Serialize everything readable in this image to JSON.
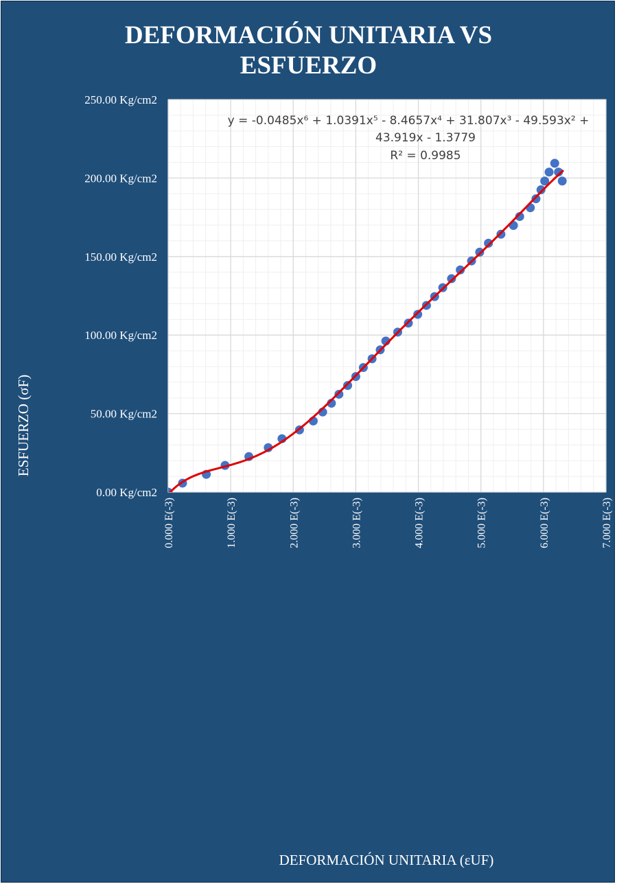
{
  "colors": {
    "frame": "#1f4e79",
    "plot_bg": "#ffffff",
    "marker": "#4472c4",
    "trendline": "#e00000",
    "grid_major": "#d9d9d9",
    "grid_minor": "#efefef"
  },
  "chart_data": {
    "type": "scatter",
    "title_lines": [
      "DEFORMACIÓN UNITARIA VS",
      "ESFUERZO"
    ],
    "xlabel": "DEFORMACIÓN UNITARIA (εUF)",
    "ylabel": "ESFUERZO (σF)",
    "xlim": [
      0,
      7
    ],
    "ylim": [
      0,
      250
    ],
    "x_ticks": [
      0,
      1,
      2,
      3,
      4,
      5,
      6,
      7
    ],
    "x_tick_labels": [
      "0.000 E(-3)",
      "1.000 E(-3)",
      "2.000 E(-3)",
      "3.000 E(-3)",
      "4.000 E(-3)",
      "5.000 E(-3)",
      "6.000 E(-3)",
      "7.000 E(-3)"
    ],
    "y_ticks": [
      0,
      50,
      100,
      150,
      200,
      250
    ],
    "y_tick_labels": [
      "0.00 Kg/cm2",
      "50.00 Kg/cm2",
      "100.00 Kg/cm2",
      "150.00 Kg/cm2",
      "200.00 Kg/cm2",
      "250.00 Kg/cm2"
    ],
    "grid": true,
    "minor_grid": true,
    "points": [
      [
        0.0,
        0.0
      ],
      [
        0.23,
        5.7
      ],
      [
        0.61,
        11.3
      ],
      [
        0.91,
        17.0
      ],
      [
        1.29,
        22.6
      ],
      [
        1.6,
        28.3
      ],
      [
        1.82,
        34.0
      ],
      [
        2.1,
        39.6
      ],
      [
        2.32,
        45.3
      ],
      [
        2.47,
        51.0
      ],
      [
        2.61,
        56.6
      ],
      [
        2.73,
        62.3
      ],
      [
        2.87,
        67.9
      ],
      [
        3.0,
        73.6
      ],
      [
        3.12,
        79.3
      ],
      [
        3.26,
        84.9
      ],
      [
        3.39,
        90.6
      ],
      [
        3.48,
        96.2
      ],
      [
        3.67,
        101.9
      ],
      [
        3.84,
        107.6
      ],
      [
        3.99,
        113.2
      ],
      [
        4.13,
        118.9
      ],
      [
        4.26,
        124.5
      ],
      [
        4.39,
        130.2
      ],
      [
        4.53,
        135.9
      ],
      [
        4.67,
        141.5
      ],
      [
        4.85,
        147.2
      ],
      [
        4.98,
        152.8
      ],
      [
        5.12,
        158.5
      ],
      [
        5.32,
        164.2
      ],
      [
        5.52,
        169.8
      ],
      [
        5.62,
        175.5
      ],
      [
        5.79,
        181.1
      ],
      [
        5.88,
        186.8
      ],
      [
        5.96,
        192.5
      ],
      [
        6.02,
        198.1
      ],
      [
        6.09,
        203.8
      ],
      [
        6.18,
        209.4
      ],
      [
        6.24,
        203.8
      ],
      [
        6.3,
        198.1
      ]
    ],
    "trendline": {
      "type": "polynomial",
      "order": 6,
      "coefficients_high_to_low": [
        -0.0485,
        1.0391,
        -8.4657,
        31.807,
        -49.593,
        43.919,
        -1.3779
      ],
      "x_range": [
        0,
        6.32
      ],
      "equation_line1": "y = -0.0485x⁶ + 1.0391x⁵ - 8.4657x⁴ + 31.807x³ - 49.593x² +",
      "equation_line2": "43.919x - 1.3779",
      "r_squared": "R² = 0.9985"
    }
  }
}
